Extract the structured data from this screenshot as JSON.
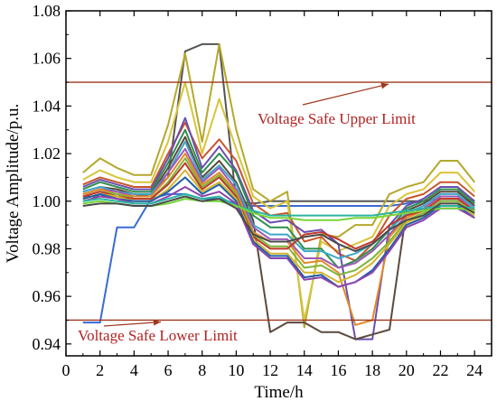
{
  "chart_data": {
    "type": "line",
    "title": "",
    "xlabel": "Time/h",
    "ylabel": "Voltage Amplitude/p.u.",
    "xlim": [
      0,
      25
    ],
    "ylim": [
      0.935,
      1.08
    ],
    "xticks": [
      0,
      2,
      4,
      6,
      8,
      10,
      12,
      14,
      16,
      18,
      20,
      22,
      24
    ],
    "yticks": [
      0.94,
      0.96,
      0.98,
      1.0,
      1.02,
      1.04,
      1.06,
      1.08
    ],
    "xtick_labels": [
      "0",
      "2",
      "4",
      "6",
      "8",
      "10",
      "12",
      "14",
      "16",
      "18",
      "20",
      "22",
      "24"
    ],
    "ytick_labels": [
      "0.94",
      "0.96",
      "0.98",
      "1.00",
      "1.02",
      "1.04",
      "1.06",
      "1.08"
    ],
    "grid": false,
    "x": [
      1,
      2,
      3,
      4,
      5,
      6,
      7,
      8,
      9,
      10,
      11,
      12,
      13,
      14,
      15,
      16,
      17,
      18,
      19,
      20,
      21,
      22,
      23,
      24
    ],
    "reference_lines": [
      {
        "value": 1.05,
        "label": "Voltage Safe Upper Limit",
        "color": "#a0361c"
      },
      {
        "value": 0.95,
        "label": "Voltage Safe Lower Limit",
        "color": "#a0361c"
      }
    ],
    "series": [
      {
        "color": "#3b6ad6",
        "values": [
          0.949,
          0.949,
          0.989,
          0.989,
          1.001,
          1.003,
          1.003,
          1.001,
          1.001,
          0.999,
          0.998,
          0.998,
          0.998,
          0.998,
          0.998,
          0.998,
          0.998,
          0.998,
          0.998,
          0.999,
          1.0,
          1.001,
          1.001,
          1.0
        ]
      },
      {
        "color": "#555555",
        "values": [
          1.002,
          1.002,
          1.002,
          1.002,
          1.003,
          1.01,
          1.063,
          1.066,
          1.066,
          1.0,
          0.999,
          1.0,
          1.0,
          1.0,
          1.0,
          1.0,
          1.0,
          1.0,
          1.0,
          1.0,
          1.0,
          1.001,
          1.001,
          1.0
        ]
      },
      {
        "color": "#b5a82c",
        "values": [
          1.012,
          1.018,
          1.014,
          1.011,
          1.011,
          1.032,
          1.062,
          1.025,
          1.066,
          1.03,
          1.005,
          1.0,
          1.004,
          0.947,
          0.986,
          0.985,
          0.99,
          0.99,
          1.003,
          1.006,
          1.008,
          1.017,
          1.017,
          1.008
        ]
      },
      {
        "color": "#d8c43a",
        "values": [
          1.009,
          1.013,
          1.01,
          1.008,
          1.008,
          1.025,
          1.05,
          1.02,
          1.043,
          1.022,
          1.002,
          0.997,
          1.0,
          0.95,
          0.983,
          0.979,
          0.982,
          0.985,
          0.998,
          1.003,
          1.005,
          1.012,
          1.012,
          1.004
        ]
      },
      {
        "color": "#c8562c",
        "values": [
          1.007,
          1.01,
          1.008,
          1.006,
          1.006,
          1.02,
          1.033,
          1.018,
          1.026,
          1.017,
          0.999,
          0.994,
          0.995,
          0.983,
          0.985,
          0.978,
          0.975,
          0.982,
          0.994,
          1.001,
          1.003,
          1.008,
          1.008,
          1.002
        ]
      },
      {
        "color": "#6a4fb0",
        "values": [
          1.006,
          1.009,
          1.007,
          1.005,
          1.005,
          1.018,
          1.035,
          1.014,
          1.023,
          1.013,
          0.996,
          0.991,
          0.992,
          0.987,
          0.988,
          0.982,
          0.942,
          0.942,
          0.99,
          0.998,
          1.001,
          1.006,
          1.006,
          1.0
        ]
      },
      {
        "color": "#2f8f4e",
        "values": [
          1.005,
          1.008,
          1.006,
          1.004,
          1.004,
          1.016,
          1.03,
          1.012,
          1.02,
          1.012,
          0.994,
          0.989,
          0.989,
          0.98,
          0.98,
          0.972,
          0.975,
          0.98,
          0.988,
          0.997,
          1.0,
          1.005,
          1.005,
          0.999
        ]
      },
      {
        "color": "#5c4a3c",
        "values": [
          1.004,
          1.006,
          1.005,
          1.003,
          1.003,
          1.014,
          1.027,
          1.01,
          1.017,
          1.008,
          0.992,
          0.945,
          0.949,
          0.949,
          0.945,
          0.945,
          0.942,
          0.944,
          0.946,
          0.996,
          0.999,
          1.004,
          1.004,
          0.998
        ]
      },
      {
        "color": "#3fa7c9",
        "values": [
          1.004,
          1.006,
          1.004,
          1.003,
          1.003,
          1.012,
          1.025,
          1.009,
          1.015,
          1.007,
          0.99,
          0.986,
          0.986,
          0.979,
          0.979,
          0.976,
          0.978,
          0.982,
          0.988,
          0.995,
          0.998,
          1.003,
          1.003,
          0.997
        ]
      },
      {
        "color": "#9b59b6",
        "values": [
          1.003,
          1.005,
          1.004,
          1.002,
          1.002,
          1.012,
          1.022,
          1.008,
          1.014,
          1.005,
          0.989,
          0.984,
          0.984,
          0.976,
          0.976,
          0.972,
          0.974,
          0.979,
          0.986,
          0.994,
          0.997,
          1.002,
          1.002,
          0.996
        ]
      },
      {
        "color": "#e08a2a",
        "values": [
          1.003,
          1.005,
          1.003,
          1.002,
          1.002,
          1.01,
          1.02,
          1.007,
          1.012,
          1.004,
          0.987,
          0.983,
          0.983,
          0.974,
          0.975,
          0.97,
          0.948,
          0.95,
          0.985,
          0.993,
          0.996,
          1.001,
          1.001,
          0.996
        ]
      },
      {
        "color": "#7fb539",
        "values": [
          1.002,
          1.004,
          1.003,
          1.001,
          1.001,
          1.008,
          1.018,
          1.006,
          1.011,
          1.003,
          0.986,
          0.981,
          0.981,
          0.972,
          0.973,
          0.969,
          0.971,
          0.976,
          0.983,
          0.992,
          0.995,
          1.0,
          1.0,
          0.995
        ]
      },
      {
        "color": "#c0392b",
        "values": [
          1.002,
          1.004,
          1.002,
          1.001,
          1.001,
          1.007,
          1.016,
          1.005,
          1.01,
          1.002,
          0.985,
          0.98,
          0.98,
          0.986,
          0.987,
          0.984,
          0.98,
          0.983,
          0.99,
          0.994,
          0.996,
          1.001,
          1.001,
          0.996
        ]
      },
      {
        "color": "#d4b62e",
        "values": [
          1.001,
          1.003,
          1.002,
          1.0,
          1.0,
          1.005,
          1.013,
          1.004,
          1.008,
          1.001,
          0.984,
          0.978,
          0.978,
          0.97,
          0.97,
          0.966,
          0.969,
          0.974,
          0.982,
          0.991,
          0.994,
          0.999,
          0.999,
          0.994
        ]
      },
      {
        "color": "#1f5fa8",
        "values": [
          1.001,
          1.003,
          1.001,
          1.0,
          1.0,
          1.004,
          1.01,
          1.003,
          1.007,
          1.0,
          0.983,
          0.977,
          0.977,
          0.968,
          0.969,
          0.964,
          0.966,
          0.971,
          0.98,
          0.99,
          0.993,
          0.998,
          0.998,
          0.993
        ]
      },
      {
        "color": "#8e44ad",
        "values": [
          1.0,
          1.002,
          1.001,
          0.999,
          0.999,
          1.002,
          1.006,
          1.002,
          1.004,
          0.999,
          0.982,
          0.976,
          0.976,
          0.967,
          0.968,
          0.964,
          0.966,
          0.97,
          0.979,
          0.989,
          0.992,
          0.997,
          0.997,
          0.993
        ]
      },
      {
        "color": "#2bb5a0",
        "values": [
          1.0,
          1.001,
          1.0,
          0.999,
          0.999,
          1.001,
          1.003,
          1.001,
          1.002,
          0.998,
          0.996,
          0.994,
          0.994,
          0.994,
          0.994,
          0.994,
          0.994,
          0.994,
          0.995,
          0.996,
          0.997,
          0.998,
          0.998,
          0.997
        ]
      },
      {
        "color": "#76d639",
        "values": [
          0.999,
          1.0,
          0.999,
          0.998,
          0.998,
          0.999,
          1.001,
          1.0,
          1.0,
          0.998,
          0.995,
          0.993,
          0.993,
          0.992,
          0.992,
          0.992,
          0.993,
          0.993,
          0.994,
          0.995,
          0.996,
          0.997,
          0.997,
          0.996
        ]
      },
      {
        "color": "#4a4a4a",
        "values": [
          0.998,
          0.999,
          0.999,
          0.998,
          0.998,
          1.0,
          1.002,
          1.0,
          1.001,
          0.997,
          0.986,
          0.983,
          0.983,
          0.985,
          0.986,
          0.982,
          0.979,
          0.982,
          0.988,
          0.992,
          0.994,
          0.999,
          0.999,
          0.995
        ]
      }
    ]
  }
}
